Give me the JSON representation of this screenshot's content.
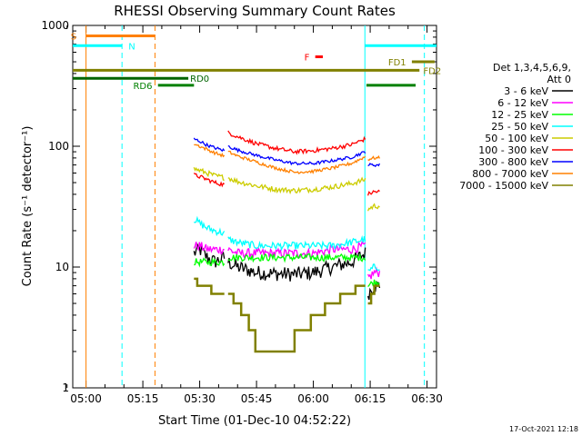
{
  "chart_data": {
    "type": "line",
    "title": "RHESSI Observing Summary Count Rates",
    "xlabel": "Start Time (01-Dec-10 04:52:22)",
    "ylabel": "Count Rate (s⁻¹ detector⁻¹)",
    "ylog": true,
    "ylim": [
      1,
      1000
    ],
    "xlim_minutes": [
      4.5,
      100.5
    ],
    "x_ticks": [
      {
        "m": 8,
        "label": "05:00"
      },
      {
        "m": 23,
        "label": "05:15"
      },
      {
        "m": 38,
        "label": "05:30"
      },
      {
        "m": 53,
        "label": "05:45"
      },
      {
        "m": 68,
        "label": "06:00"
      },
      {
        "m": 83,
        "label": "06:15"
      },
      {
        "m": 98,
        "label": "06:30"
      }
    ],
    "y_ticks": [
      {
        "v": 1,
        "label": "1"
      },
      {
        "v": 10,
        "label": "10"
      },
      {
        "v": 100,
        "label": "100"
      },
      {
        "v": 1000,
        "label": "1000"
      }
    ],
    "legend_header": [
      "Det 1,3,4,5,6,9,",
      "Att 0"
    ],
    "legend_placement": "right",
    "footer_date": "17-Oct-2021 12:18",
    "series": [
      {
        "name": "3 - 6 keV",
        "color": "#000000",
        "noise": 0.14,
        "segs": [
          {
            "x": [
              36.5,
              38,
              40,
              42,
              44.5
            ],
            "y": [
              13,
              14,
              12,
              11,
              12
            ]
          },
          {
            "x": [
              45.5,
              48,
              53,
              58,
              63,
              68,
              73,
              78,
              81.7
            ],
            "y": [
              11,
              10,
              9,
              8.8,
              8.7,
              9,
              10,
              11,
              13
            ]
          },
          {
            "x": [
              82.4,
              84,
              85.5
            ],
            "y": [
              6,
              7,
              7
            ]
          }
        ]
      },
      {
        "name": "6 - 12 keV",
        "color": "#ff00ff",
        "noise": 0.09,
        "segs": [
          {
            "x": [
              36.5,
              38,
              40,
              42,
              44.5
            ],
            "y": [
              15,
              15,
              14,
              14,
              14
            ]
          },
          {
            "x": [
              45.5,
              48,
              53,
              58,
              63,
              68,
              73,
              78,
              81.7
            ],
            "y": [
              14,
              13,
              13,
              13,
              13,
              13,
              14,
              14,
              15
            ]
          },
          {
            "x": [
              82.4,
              84,
              85.5
            ],
            "y": [
              8,
              9,
              9
            ]
          }
        ]
      },
      {
        "name": "12 - 25 keV",
        "color": "#00ff00",
        "noise": 0.07,
        "segs": [
          {
            "x": [
              36.5,
              38,
              40,
              42,
              44.5
            ],
            "y": [
              11,
              11,
              11,
              11,
              11
            ]
          },
          {
            "x": [
              45.5,
              48,
              53,
              58,
              63,
              68,
              73,
              78,
              81.7
            ],
            "y": [
              12,
              12,
              12,
              12,
              12,
              12,
              12,
              12,
              12
            ]
          },
          {
            "x": [
              82.4,
              84,
              85.5
            ],
            "y": [
              7,
              7.5,
              7.5
            ]
          }
        ]
      },
      {
        "name": "25 - 50 keV",
        "color": "#00ffff",
        "noise": 0.07,
        "segs": [
          {
            "x": [
              36.5,
              38,
              40,
              42,
              44.5
            ],
            "y": [
              25,
              23,
              21,
              20,
              19
            ]
          },
          {
            "x": [
              45.5,
              48,
              53,
              58,
              63,
              68,
              73,
              78,
              81.7
            ],
            "y": [
              17,
              16,
              15,
              15,
              15,
              15,
              15,
              16,
              17
            ]
          },
          {
            "x": [
              82.4,
              84,
              85.5
            ],
            "y": [
              9,
              10,
              10
            ]
          }
        ]
      },
      {
        "name": "50 - 100 keV",
        "color": "#cccc00",
        "noise": 0.05,
        "segs": [
          {
            "x": [
              36.5,
              38,
              40,
              42,
              44.5
            ],
            "y": [
              65,
              63,
              60,
              57,
              55
            ]
          },
          {
            "x": [
              45.5,
              48,
              53,
              58,
              63,
              68,
              73,
              78,
              81.7
            ],
            "y": [
              55,
              51,
              47,
              44,
              43,
              44,
              46,
              49,
              53
            ]
          },
          {
            "x": [
              82.4,
              84,
              85.5
            ],
            "y": [
              30,
              32,
              32
            ]
          }
        ]
      },
      {
        "name": "100 - 300 keV",
        "color": "#ff0000",
        "noise": 0.04,
        "segs": [
          {
            "x": [
              36.5,
              38,
              40,
              42,
              44.5
            ],
            "y": [
              58,
              56,
              53,
              50,
              48
            ]
          },
          {
            "x": [
              45.5,
              48,
              53,
              58,
              63,
              68,
              73,
              78,
              81.7
            ],
            "y": [
              130,
              120,
              105,
              96,
              90,
              92,
              96,
              103,
              115
            ]
          },
          {
            "x": [
              82.4,
              84,
              85.5
            ],
            "y": [
              40,
              42,
              42
            ]
          }
        ]
      },
      {
        "name": "300 - 800 keV",
        "color": "#0000ff",
        "noise": 0.03,
        "segs": [
          {
            "x": [
              36.5,
              38,
              40,
              42,
              44.5
            ],
            "y": [
              115,
              110,
              102,
              97,
              92
            ]
          },
          {
            "x": [
              45.5,
              48,
              53,
              58,
              63,
              68,
              73,
              78,
              81.7
            ],
            "y": [
              100,
              93,
              84,
              77,
              72,
              72,
              76,
              81,
              90
            ]
          },
          {
            "x": [
              82.4,
              84,
              85.5
            ],
            "y": [
              70,
              70,
              70
            ]
          }
        ]
      },
      {
        "name": "800 - 7000 keV",
        "color": "#ff8000",
        "noise": 0.03,
        "segs": [
          {
            "x": [
              36.5,
              38,
              40,
              42,
              44.5
            ],
            "y": [
              105,
              100,
              94,
              88,
              83
            ]
          },
          {
            "x": [
              45.5,
              48,
              53,
              58,
              63,
              68,
              73,
              78,
              81.7
            ],
            "y": [
              90,
              83,
              74,
              66,
              61,
              62,
              66,
              72,
              82
            ]
          },
          {
            "x": [
              82.4,
              84,
              85.5
            ],
            "y": [
              78,
              80,
              80
            ]
          }
        ]
      },
      {
        "name": "7000 - 15000 keV",
        "color": "#808000",
        "noise": 0.0,
        "segs": [
          {
            "x": [
              36.5,
              38,
              40,
              42,
              44.5
            ],
            "y": [
              8,
              7,
              7,
              6,
              6
            ]
          },
          {
            "x": [
              45.5,
              48,
              50,
              52,
              53.5,
              62,
              63.5,
              66,
              68,
              70,
              72,
              74,
              76,
              78,
              80,
              81.7
            ],
            "y": [
              6,
              5,
              4,
              3,
              2,
              2,
              3,
              3,
              4,
              4,
              5,
              5,
              6,
              6,
              7,
              7
            ]
          },
          {
            "x": [
              82.4,
              83.5,
              84.5,
              85.5
            ],
            "y": [
              5,
              6,
              7,
              7
            ]
          }
        ]
      }
    ],
    "vlines": [
      {
        "m": 8,
        "color": "#ff8000",
        "dashed": false
      },
      {
        "m": 26.2,
        "color": "#ff8000",
        "dashed": true
      },
      {
        "m": 17.5,
        "color": "#00ffff",
        "dashed": true
      },
      {
        "m": 81.6,
        "color": "#00ffff",
        "dashed": false
      },
      {
        "m": 97.3,
        "color": "#00ffff",
        "dashed": true
      }
    ],
    "flag_bars": [
      {
        "label": "S",
        "color": "#ff8000",
        "segments": [
          [
            8,
            26.2
          ]
        ],
        "value": 820,
        "label_m": 5.5,
        "label_side": "left"
      },
      {
        "label": "N",
        "color": "#00ffff",
        "segments": [
          [
            4.5,
            17.5
          ],
          [
            81.6,
            100.5
          ]
        ],
        "value": 680,
        "label_m": 19.2,
        "label_side": "right"
      },
      {
        "label": "F",
        "color": "#ff0000",
        "segments": [
          [
            68.5,
            70.5
          ]
        ],
        "value": 550,
        "label_m": 67,
        "label_side": "left"
      },
      {
        "label": "FD1",
        "color": "#808000",
        "segments": [
          [
            94,
            100
          ]
        ],
        "value": 500,
        "label_m": 92.5,
        "label_side": "left"
      },
      {
        "label": "FD2",
        "color": "#808000",
        "segments": [
          [
            4.5,
            96
          ]
        ],
        "value": 425,
        "label_m": 97,
        "label_side": "right"
      },
      {
        "label": "RD0",
        "color": "#006400",
        "segments": [
          [
            4.5,
            35
          ]
        ],
        "value": 365,
        "label_m": 35.5,
        "label_side": "right"
      },
      {
        "label": "RD6",
        "color": "#008000",
        "segments": [
          [
            27,
            36.5
          ],
          [
            82,
            95
          ]
        ],
        "value": 320,
        "label_m": 25.5,
        "label_side": "left"
      }
    ]
  }
}
